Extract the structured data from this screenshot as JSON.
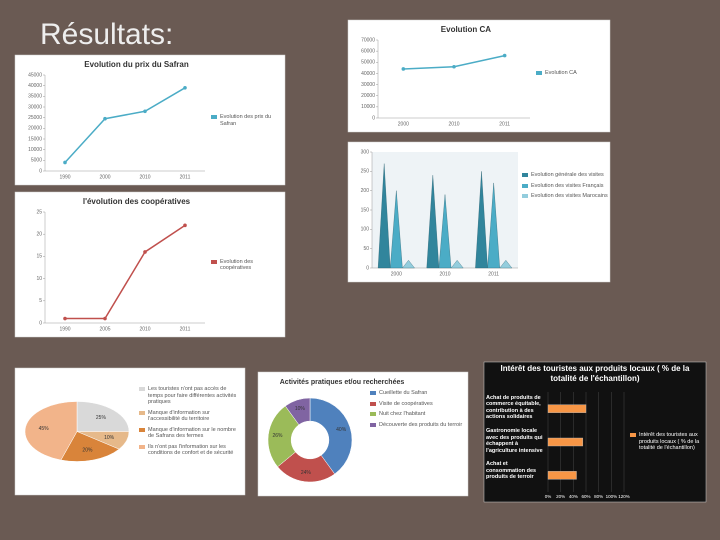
{
  "title": "Résultats:",
  "chart_data": [
    {
      "type": "line",
      "title": "Evolution du prix du Safran",
      "categories": [
        "1990",
        "2000",
        "2010",
        "2011"
      ],
      "series": [
        {
          "name": "Evolution des prix du Safran",
          "color": "#4bacc6",
          "values": [
            4000,
            24500,
            28000,
            39000
          ]
        }
      ],
      "ylim": [
        0,
        45000
      ],
      "yticks": [
        0,
        5000,
        10000,
        15000,
        20000,
        25000,
        30000,
        35000,
        40000,
        45000
      ]
    },
    {
      "type": "line",
      "title": "Evolution CA",
      "categories": [
        "2000",
        "2010",
        "2011"
      ],
      "series": [
        {
          "name": "Evolution CA",
          "color": "#4bacc6",
          "values": [
            44000,
            46000,
            56000
          ]
        }
      ],
      "ylim": [
        0,
        70000
      ],
      "yticks": [
        0,
        10000,
        20000,
        30000,
        40000,
        50000,
        60000,
        70000
      ]
    },
    {
      "type": "cone",
      "categories": [
        "2000",
        "2010",
        "2011"
      ],
      "series": [
        {
          "name": "Evolution générale des visites",
          "color": "#31859c",
          "values": [
            270,
            240,
            250
          ]
        },
        {
          "name": "Evolution des visites Français",
          "color": "#4bacc6",
          "values": [
            200,
            190,
            220
          ]
        },
        {
          "name": "Evolution des visites Marocains",
          "color": "#93cddd",
          "values": [
            20,
            20,
            20
          ]
        }
      ],
      "ylim": [
        0,
        300
      ],
      "yticks": [
        0,
        50,
        100,
        150,
        200,
        250,
        300
      ]
    },
    {
      "type": "line",
      "title": "l'évolution des coopératives",
      "categories": [
        "1990",
        "2005",
        "2010",
        "2011"
      ],
      "series": [
        {
          "name": "Evolution des coopératives",
          "color": "#c0504d",
          "values": [
            1,
            1,
            16,
            22
          ]
        }
      ],
      "ylim": [
        0,
        25
      ],
      "yticks": [
        0,
        5,
        10,
        15,
        20,
        25
      ]
    },
    {
      "type": "pie",
      "categories": [
        "Les touristes n'ont pas accès de temps pour faire différentes activités pratiques",
        "Manque d'information sur l'accessibilité du territoire",
        "Manque d'information sur le nombre de Safrans des fermes",
        "Ils n'ont pas l'information sur les conditions de confort et de sécurité"
      ],
      "values": [
        25,
        10,
        20,
        45
      ],
      "value_labels": [
        "25%",
        "10%",
        "20%",
        "45%"
      ],
      "colors": [
        "#d9d9d9",
        "#e6b98a",
        "#d9843a",
        "#f2b48a"
      ]
    },
    {
      "type": "donut",
      "title": "Activités pratiques et/ou recherchées",
      "categories": [
        "Cueillette du Safran",
        "Visite de coopératives",
        "Nuit chez l'habitant",
        "Découverte des produits du terroir"
      ],
      "values": [
        40,
        24,
        26,
        10
      ],
      "value_labels": [
        "40%",
        "24%",
        "26%",
        "10%"
      ],
      "colors": [
        "#4f81bd",
        "#c0504d",
        "#9bbb59",
        "#8064a2"
      ]
    },
    {
      "type": "hbar",
      "title": "Intérêt des touristes aux produits locaux ( % de la totalité de l'échantillon)",
      "categories": [
        "Achat et consommation des produits de terroir",
        "Gastronomie locale avec des produits qui échappent à l'agriculture intensive",
        "Achat de produits de commerce équitable, contribution à des actions solidaires"
      ],
      "series": [
        {
          "name": "Intérêt des touristes aux produits locaux ( % de la totalité de l'échantillon)",
          "color": "#f79646",
          "values": [
            45,
            55,
            60
          ]
        }
      ],
      "xlim": [
        0,
        120
      ],
      "xticks": [
        {
          "value": 0,
          "label": "0%"
        },
        {
          "value": 20,
          "label": "20%"
        },
        {
          "value": 40,
          "label": "40%"
        },
        {
          "value": 60,
          "label": "60%"
        },
        {
          "value": 80,
          "label": "80%"
        },
        {
          "value": 100,
          "label": "100%"
        },
        {
          "value": 120,
          "label": "120%"
        }
      ]
    }
  ]
}
